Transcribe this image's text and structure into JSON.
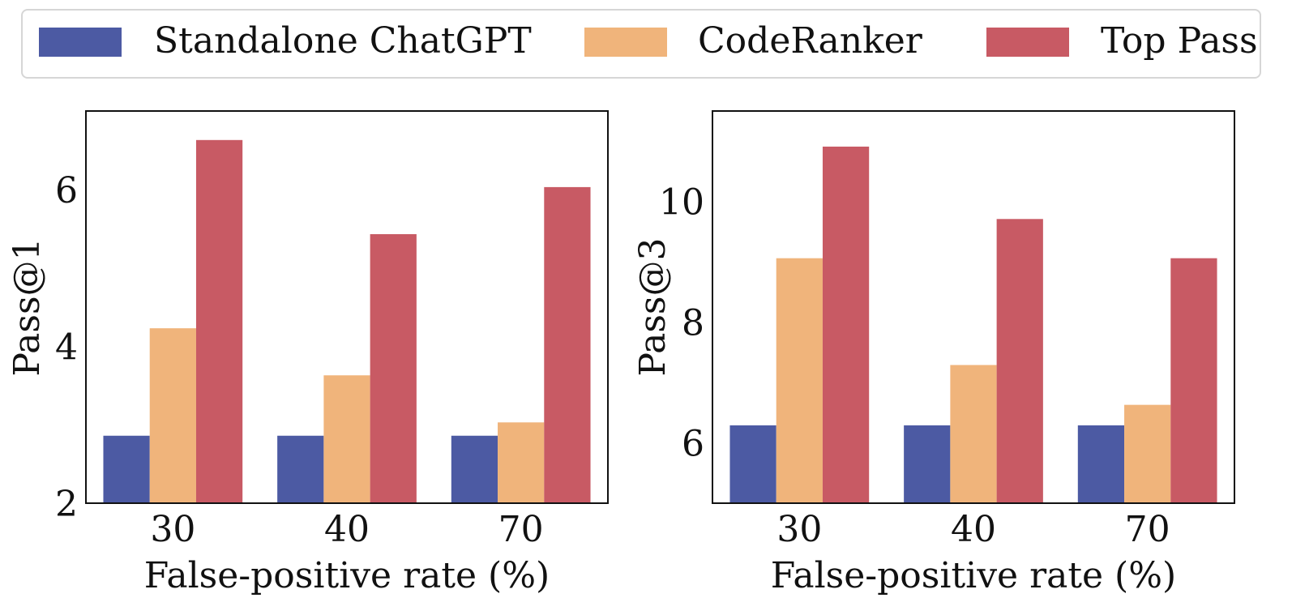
{
  "legend": [
    {
      "label": "Standalone ChatGPT",
      "color": "#4c5aa3"
    },
    {
      "label": "CodeRanker",
      "color": "#f0b47b"
    },
    {
      "label": "Top Pass",
      "color": "#c85a64"
    }
  ],
  "chart_data": [
    {
      "type": "bar",
      "categories": [
        "30",
        "40",
        "70"
      ],
      "xlabel": "False-positive rate (%)",
      "ylabel": "Pass@1",
      "ylim": [
        2,
        7.0
      ],
      "yticks": [
        2,
        4,
        6
      ],
      "series": [
        {
          "name": "Standalone ChatGPT",
          "color": "#4c5aa3",
          "values": [
            2.86,
            2.86,
            2.86
          ]
        },
        {
          "name": "CodeRanker",
          "color": "#f0b47b",
          "values": [
            4.23,
            3.63,
            3.03
          ]
        },
        {
          "name": "Top Pass",
          "color": "#c85a64",
          "values": [
            6.63,
            5.43,
            6.03
          ]
        }
      ]
    },
    {
      "type": "bar",
      "categories": [
        "30",
        "40",
        "70"
      ],
      "xlabel": "False-positive rate (%)",
      "ylabel": "Pass@3",
      "ylim": [
        5.0,
        11.5
      ],
      "yticks": [
        6,
        8,
        10
      ],
      "series": [
        {
          "name": "Standalone ChatGPT",
          "color": "#4c5aa3",
          "values": [
            6.29,
            6.29,
            6.29
          ]
        },
        {
          "name": "CodeRanker",
          "color": "#f0b47b",
          "values": [
            9.06,
            7.29,
            6.63
          ]
        },
        {
          "name": "Top Pass",
          "color": "#c85a64",
          "values": [
            10.91,
            9.71,
            9.06
          ]
        }
      ]
    }
  ]
}
